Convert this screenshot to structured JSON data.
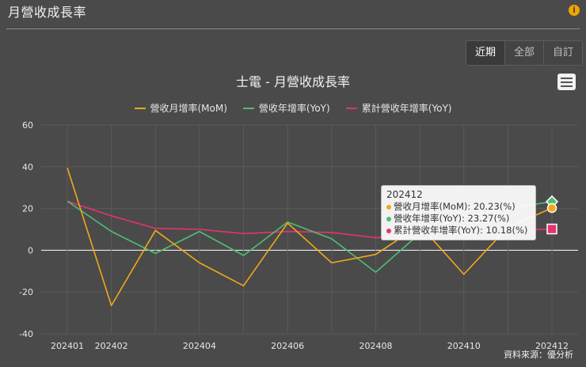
{
  "panel": {
    "title": "月營收成長率"
  },
  "range_buttons": [
    "近期",
    "全部",
    "自訂"
  ],
  "source": "資料來源：優分析",
  "colors": {
    "mom": "#f2a818",
    "yoy": "#4ebe75",
    "cum": "#e6336e"
  },
  "icons": {
    "info": "info-icon",
    "menu": "hamburger-menu-icon"
  },
  "chart_data": {
    "type": "line",
    "title": "士電 - 月營收成長率",
    "categories": [
      "202401",
      "202402",
      "202403",
      "202404",
      "202405",
      "202406",
      "202407",
      "202408",
      "202409",
      "202410",
      "202411",
      "202412"
    ],
    "x_tick_labels": [
      "202401",
      "202402",
      "202404",
      "202406",
      "202408",
      "202410",
      "202412"
    ],
    "ylim": [
      -40,
      60
    ],
    "y_ticks": [
      "60",
      "40",
      "20",
      "0",
      "-20",
      "-40"
    ],
    "grid": true,
    "legend_position": "top",
    "series": [
      {
        "name": "營收月增率(MoM)",
        "values": [
          39.5,
          -26.5,
          9.5,
          -6,
          -17,
          13,
          -6,
          -2,
          12,
          -11.5,
          11,
          20.23
        ]
      },
      {
        "name": "營收年增率(YoY)",
        "values": [
          23.5,
          9,
          -1.5,
          9,
          -2.5,
          13.5,
          5.5,
          -10.5,
          8,
          16,
          20,
          23.27
        ]
      },
      {
        "name": "累計營收年增率(YoY)",
        "values": [
          23.5,
          16.5,
          10.5,
          10,
          8,
          9,
          8.5,
          6,
          7.5,
          9,
          9.5,
          10.18
        ]
      }
    ],
    "tooltip": {
      "category": "202412",
      "rows": [
        "營收月增率(MoM): 20.23(%)",
        "營收年增率(YoY): 23.27(%)",
        "累計營收年增率(YoY): 10.18(%)"
      ]
    }
  }
}
